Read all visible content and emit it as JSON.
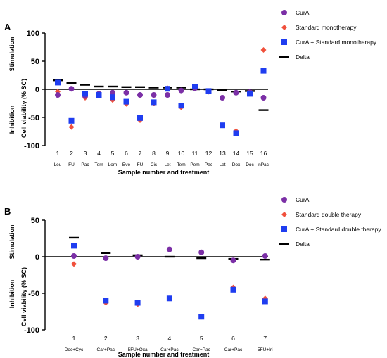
{
  "chart_data": [
    {
      "panel_label": "A",
      "type": "scatter",
      "xlabel": "Sample number and treatment",
      "ylabel": "Cell viability (% SC)",
      "ylabel_top": "Stimulation",
      "ylabel_bottom": "Inhibition",
      "ylim": [
        -100,
        100
      ],
      "yticks": [
        "100",
        "50",
        "0",
        "-50",
        "-100"
      ],
      "categories": [
        "1",
        "2",
        "3",
        "4",
        "5",
        "6",
        "7",
        "8",
        "9",
        "10",
        "11",
        "12",
        "13",
        "14",
        "15",
        "16"
      ],
      "category_treatments": [
        "Leu",
        "FU",
        "Pac",
        "Tem",
        "Lom",
        "Eve",
        "FU",
        "Cis",
        "Let",
        "Tem",
        "Pem",
        "Pac",
        "Let",
        "Dox",
        "Doc",
        "nPac"
      ],
      "series": [
        {
          "name": "CurA",
          "marker": "circle",
          "color": "#7B2FA6",
          "values": [
            -10,
            1,
            -12,
            -8,
            -6,
            -6,
            -10,
            -10,
            -10,
            -2,
            2,
            -4,
            -15,
            -6,
            -5,
            -15
          ]
        },
        {
          "name": "Standard monotherapy",
          "marker": "diamond",
          "color": "#F0503C",
          "values": [
            -4,
            -67,
            -15,
            -12,
            -19,
            -26,
            -55,
            -25,
            2,
            -32,
            5,
            -4,
            -64,
            -74,
            -7,
            70
          ]
        },
        {
          "name": "CurA + Standard monotherapy",
          "marker": "square",
          "color": "#1F3DF0",
          "values": [
            12,
            -56,
            -8,
            -10,
            -14,
            -22,
            -51,
            -23,
            1,
            -29,
            5,
            -3,
            -64,
            -78,
            -8,
            33
          ]
        },
        {
          "name": "Delta",
          "marker": "dash",
          "color": "#000000",
          "values": [
            16,
            11,
            8,
            5,
            5,
            4,
            4,
            3,
            3,
            3,
            0,
            0,
            -2,
            -4,
            -3,
            -37
          ]
        }
      ]
    },
    {
      "panel_label": "B",
      "type": "scatter",
      "xlabel": "Sample number and treatment",
      "ylabel": "Cell viability (% SC)",
      "ylabel_top": "Stimulation",
      "ylabel_bottom": "Inhibition",
      "ylim": [
        -100,
        50
      ],
      "yticks": [
        "50",
        "0",
        "-50",
        "-100"
      ],
      "categories": [
        "1",
        "2",
        "3",
        "4",
        "5",
        "6",
        "7"
      ],
      "category_treatments": [
        "Doc+Cyc",
        "Car+Pac",
        "5FU+Oxa",
        "Car+Pac",
        "Car+Pac",
        "Car+Pac",
        "5FU+Iri"
      ],
      "series": [
        {
          "name": "CurA",
          "marker": "circle",
          "color": "#7B2FA6",
          "values": [
            1,
            -2,
            0,
            10,
            6,
            -5,
            1
          ]
        },
        {
          "name": "Standard double therapy",
          "marker": "diamond",
          "color": "#F0503C",
          "values": [
            -10,
            -63,
            -65,
            -57,
            -82,
            -42,
            -57
          ]
        },
        {
          "name": "CurA + Standard double therapy",
          "marker": "square",
          "color": "#1F3DF0",
          "values": [
            15,
            -60,
            -63,
            -57,
            -82,
            -45,
            -61
          ]
        },
        {
          "name": "Delta",
          "marker": "dash",
          "color": "#000000",
          "values": [
            26,
            5,
            2,
            0,
            -2,
            -3,
            -4
          ]
        }
      ]
    }
  ]
}
